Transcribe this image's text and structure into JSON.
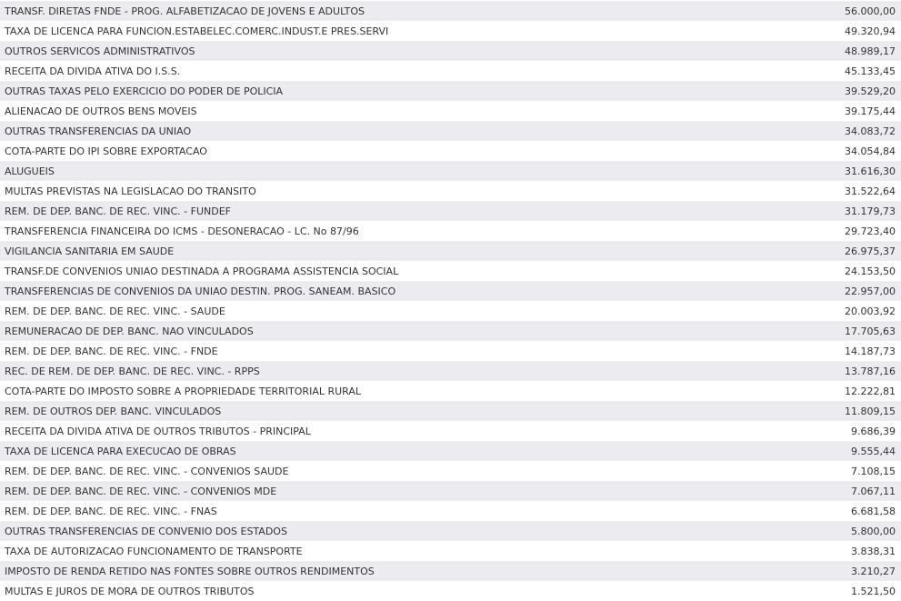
{
  "rows": [
    {
      "description": "TRANSF. DIRETAS FNDE - PROG. ALFABETIZACAO DE JOVENS E ADULTOS",
      "value": "56.000,00"
    },
    {
      "description": "TAXA DE LICENCA PARA FUNCION.ESTABELEC.COMERC.INDUST.E PRES.SERVI",
      "value": "49.320,94"
    },
    {
      "description": "OUTROS SERVICOS ADMINISTRATIVOS",
      "value": "48.989,17"
    },
    {
      "description": "RECEITA DA DIVIDA ATIVA DO I.S.S.",
      "value": "45.133,45"
    },
    {
      "description": "OUTRAS TAXAS PELO EXERCICIO DO PODER DE POLICIA",
      "value": "39.529,20"
    },
    {
      "description": "ALIENACAO DE OUTROS BENS MOVEIS",
      "value": "39.175,44"
    },
    {
      "description": "OUTRAS TRANSFERENCIAS DA UNIAO",
      "value": "34.083,72"
    },
    {
      "description": "COTA-PARTE DO IPI SOBRE EXPORTACAO",
      "value": "34.054,84"
    },
    {
      "description": "ALUGUEIS",
      "value": "31.616,30"
    },
    {
      "description": "MULTAS PREVISTAS NA LEGISLACAO DO TRANSITO",
      "value": "31.522,64"
    },
    {
      "description": "REM. DE DEP. BANC. DE REC. VINC. - FUNDEF",
      "value": "31.179,73"
    },
    {
      "description": "TRANSFERENCIA FINANCEIRA DO ICMS - DESONERACAO - LC. No 87/96",
      "value": "29.723,40"
    },
    {
      "description": "VIGILANCIA SANITARIA EM SAUDE",
      "value": "26.975,37"
    },
    {
      "description": "TRANSF.DE CONVENIOS UNIAO DESTINADA A PROGRAMA ASSISTENCIA SOCIAL",
      "value": "24.153,50"
    },
    {
      "description": "TRANSFERENCIAS DE CONVENIOS DA UNIAO DESTIN. PROG. SANEAM. BASICO",
      "value": "22.957,00"
    },
    {
      "description": "REM. DE DEP. BANC. DE REC. VINC. - SAUDE",
      "value": "20.003,92"
    },
    {
      "description": "REMUNERACAO DE DEP. BANC. NAO VINCULADOS",
      "value": "17.705,63"
    },
    {
      "description": "REM. DE DEP. BANC. DE REC. VINC. - FNDE",
      "value": "14.187,73"
    },
    {
      "description": "REC. DE REM. DE DEP. BANC. DE REC. VINC. - RPPS",
      "value": "13.787,16"
    },
    {
      "description": "COTA-PARTE DO IMPOSTO SOBRE A PROPRIEDADE TERRITORIAL RURAL",
      "value": "12.222,81"
    },
    {
      "description": "REM. DE OUTROS DEP. BANC. VINCULADOS",
      "value": "11.809,15"
    },
    {
      "description": "RECEITA DA DIVIDA ATIVA DE OUTROS TRIBUTOS - PRINCIPAL",
      "value": "9.686,39"
    },
    {
      "description": "TAXA DE LICENCA PARA EXECUCAO DE OBRAS",
      "value": "9.555,44"
    },
    {
      "description": "REM. DE DEP. BANC. DE REC. VINC. - CONVENIOS SAUDE",
      "value": "7.108,15"
    },
    {
      "description": "REM. DE DEP. BANC. DE REC. VINC. - CONVENIOS MDE",
      "value": "7.067,11"
    },
    {
      "description": "REM. DE DEP. BANC. DE REC. VINC. - FNAS",
      "value": "6.681,58"
    },
    {
      "description": "OUTRAS TRANSFERENCIAS DE CONVENIO DOS ESTADOS",
      "value": "5.800,00"
    },
    {
      "description": "TAXA DE AUTORIZACAO FUNCIONAMENTO DE TRANSPORTE",
      "value": "3.838,31"
    },
    {
      "description": "IMPOSTO DE RENDA RETIDO NAS FONTES SOBRE OUTROS RENDIMENTOS",
      "value": "3.210,27"
    },
    {
      "description": "MULTAS E JUROS DE MORA DE OUTROS TRIBUTOS",
      "value": "1.521,50"
    }
  ]
}
